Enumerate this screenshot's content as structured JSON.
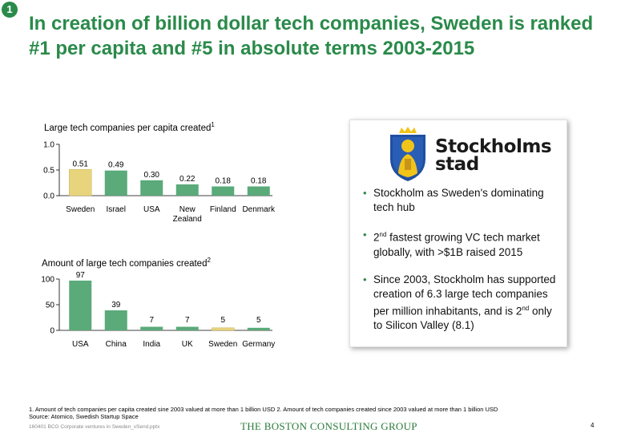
{
  "slide": {
    "badge": "1",
    "title_line1": "In creation of billion dollar tech companies, Sweden is ranked",
    "title_line2": "#1 per capita and #5 in absolute terms 2003-2015"
  },
  "chart_data": [
    {
      "type": "bar",
      "title": "Large tech companies per capita created",
      "title_sup": "1",
      "categories": [
        "Sweden",
        "Israel",
        "USA",
        "New Zealand",
        "Finland",
        "Denmark"
      ],
      "category_lines": [
        [
          "Sweden"
        ],
        [
          "Israel"
        ],
        [
          "USA"
        ],
        [
          "New",
          "Zealand"
        ],
        [
          "Finland"
        ],
        [
          "Denmark"
        ]
      ],
      "values": [
        0.51,
        0.49,
        0.3,
        0.22,
        0.18,
        0.18
      ],
      "value_labels": [
        "0.51",
        "0.49",
        "0.30",
        "0.22",
        "0.18",
        "0.18"
      ],
      "highlight_index": 0,
      "ylim": [
        0,
        1.0
      ],
      "yticks": [
        "0.0",
        "0.5",
        "1.0"
      ],
      "ytick_values": [
        0,
        0.5,
        1.0
      ],
      "xlabel": "",
      "ylabel": ""
    },
    {
      "type": "bar",
      "title": "Amount of large tech companies created",
      "title_sup": "2",
      "categories": [
        "USA",
        "China",
        "India",
        "UK",
        "Sweden",
        "Germany"
      ],
      "category_lines": [
        [
          "USA"
        ],
        [
          "China"
        ],
        [
          "India"
        ],
        [
          "UK"
        ],
        [
          "Sweden"
        ],
        [
          "Germany"
        ]
      ],
      "values": [
        97,
        39,
        7,
        7,
        5,
        5
      ],
      "value_labels": [
        "97",
        "39",
        "7",
        "7",
        "5",
        "5"
      ],
      "highlight_index": 4,
      "ylim": [
        0,
        100
      ],
      "yticks": [
        "0",
        "50",
        "100"
      ],
      "ytick_values": [
        0,
        50,
        100
      ],
      "xlabel": "",
      "ylabel": ""
    }
  ],
  "colors": {
    "bar": "#5aaa7a",
    "highlight": "#e8d47c",
    "accent": "#2a8a4a"
  },
  "panel": {
    "logo_icon": "stockholm-crest-icon",
    "logo_line1": "Stockholms",
    "logo_line2": "stad",
    "bullet1": "Stockholm as Sweden's dominating tech hub",
    "bullet2_sup": "nd",
    "bullet2_a": "2",
    "bullet2_b": " fastest growing VC tech market globally, with >$1B raised 2015",
    "bullet3_a": "Since 2003, Stockholm has supported creation of 6.3 large tech companies per million inhabitants, and is 2",
    "bullet3_sup": "nd",
    "bullet3_b": " only to Silicon Valley (8.1)"
  },
  "footer": {
    "footnote1": "1. Amount of tech companies per capita created sine 2003 valued at more than 1 billion USD 2. Amount of tech companies created since 2003 valued at more than 1 billion USD",
    "source": "Source: Atomico, Swedish Startup Space",
    "file": "160401 BCG Corporate ventures in Sweden_vSend.pptx",
    "brand": "THE BOSTON CONSULTING GROUP",
    "page": "4"
  }
}
